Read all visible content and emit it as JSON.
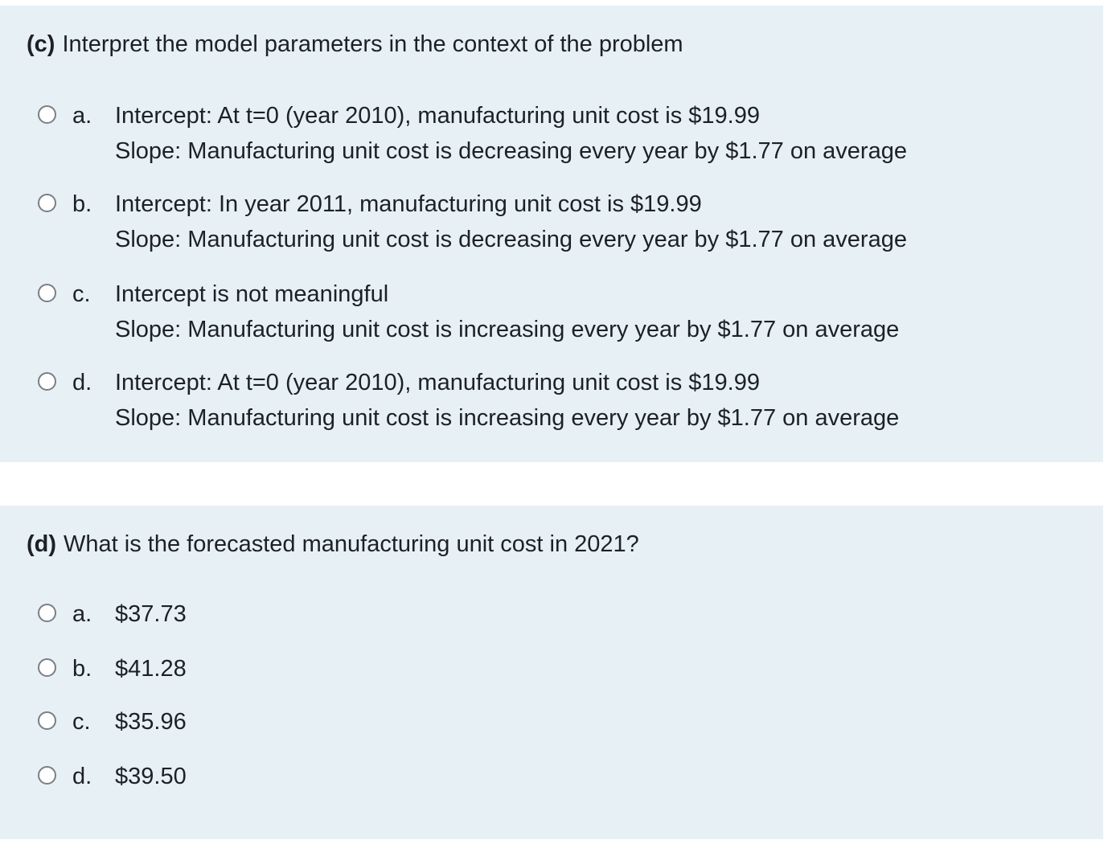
{
  "part_c": {
    "label": "(c)",
    "question": "Interpret the model parameters in the context of the problem",
    "options": [
      {
        "letter": "a.",
        "lines": [
          "Intercept: At t=0 (year 2010), manufacturing unit cost is $19.99",
          "Slope: Manufacturing unit cost is decreasing every year by $1.77 on average"
        ]
      },
      {
        "letter": "b.",
        "lines": [
          "Intercept: In year 2011, manufacturing unit cost is $19.99",
          "Slope: Manufacturing unit cost is decreasing every year by $1.77 on average"
        ]
      },
      {
        "letter": "c.",
        "lines": [
          "Intercept is not meaningful",
          "Slope: Manufacturing unit cost is increasing every year by $1.77 on average"
        ]
      },
      {
        "letter": "d.",
        "lines": [
          "Intercept: At t=0 (year 2010), manufacturing unit cost is $19.99",
          "Slope: Manufacturing unit cost is increasing every year by $1.77 on average"
        ]
      }
    ]
  },
  "part_d": {
    "label": "(d)",
    "question": "What is the forecasted manufacturing unit cost in 2021?",
    "options": [
      {
        "letter": "a.",
        "text": "$37.73"
      },
      {
        "letter": "b.",
        "text": "$41.28"
      },
      {
        "letter": "c.",
        "text": "$35.96"
      },
      {
        "letter": "d.",
        "text": "$39.50"
      }
    ]
  },
  "colors": {
    "panel_background": "#e7f1f5",
    "text": "#1d2125",
    "radio_border": "#7a7f85"
  }
}
